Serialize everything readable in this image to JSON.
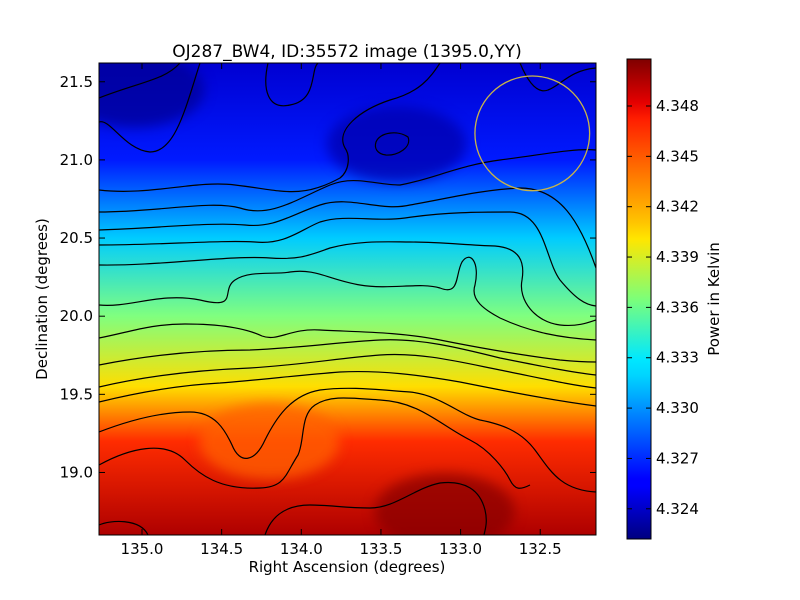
{
  "chart_data": {
    "type": "heatmap",
    "title": "OJ287_BW4, ID:35572 image (1395.0,YY)",
    "xlabel": "Right Ascension (degrees)",
    "ylabel": "Declination (degrees)",
    "colorbar_label": "Power in Kelvin",
    "colormap": "jet",
    "xlim": [
      135.27,
      132.15
    ],
    "ylim": [
      18.6,
      21.62
    ],
    "x_ticks": [
      135.0,
      134.5,
      134.0,
      133.5,
      133.0,
      132.5
    ],
    "x_tick_labels": [
      "135.0",
      "134.5",
      "134.0",
      "133.5",
      "133.0",
      "132.5"
    ],
    "y_ticks": [
      19.0,
      19.5,
      20.0,
      20.5,
      21.0,
      21.5
    ],
    "y_tick_labels": [
      "19.0",
      "19.5",
      "20.0",
      "20.5",
      "21.0",
      "21.5"
    ],
    "colorbar_range": [
      4.3222,
      4.3508
    ],
    "colorbar_ticks": [
      4.324,
      4.327,
      4.33,
      4.333,
      4.336,
      4.339,
      4.342,
      4.345,
      4.348
    ],
    "colorbar_tick_labels": [
      "4.324",
      "4.327",
      "4.330",
      "4.333",
      "4.336",
      "4.339",
      "4.342",
      "4.345",
      "4.348"
    ],
    "beam_circle": {
      "ra": 132.55,
      "dec": 21.17,
      "radius_deg": 0.36,
      "color": "#c8b44a"
    },
    "field_trend": [
      {
        "dec": 21.62,
        "power": 4.3245
      },
      {
        "dec": 21.0,
        "power": 4.3265
      },
      {
        "dec": 20.5,
        "power": 4.3315
      },
      {
        "dec": 20.0,
        "power": 4.3365
      },
      {
        "dec": 19.55,
        "power": 4.341
      },
      {
        "dec": 19.2,
        "power": 4.346
      },
      {
        "dec": 18.6,
        "power": 4.3495
      }
    ],
    "features": [
      {
        "ra": 135.05,
        "dec": 21.45,
        "power": 4.3228,
        "label": "minimum (dark blue)"
      },
      {
        "ra": 133.4,
        "dec": 21.1,
        "power": 4.3235,
        "label": "local minimum"
      },
      {
        "ra": 133.1,
        "dec": 18.75,
        "power": 4.3505,
        "label": "maximum (dark red)"
      },
      {
        "ra": 134.2,
        "dec": 19.2,
        "power": 4.3445,
        "label": "orange lobe"
      }
    ]
  }
}
